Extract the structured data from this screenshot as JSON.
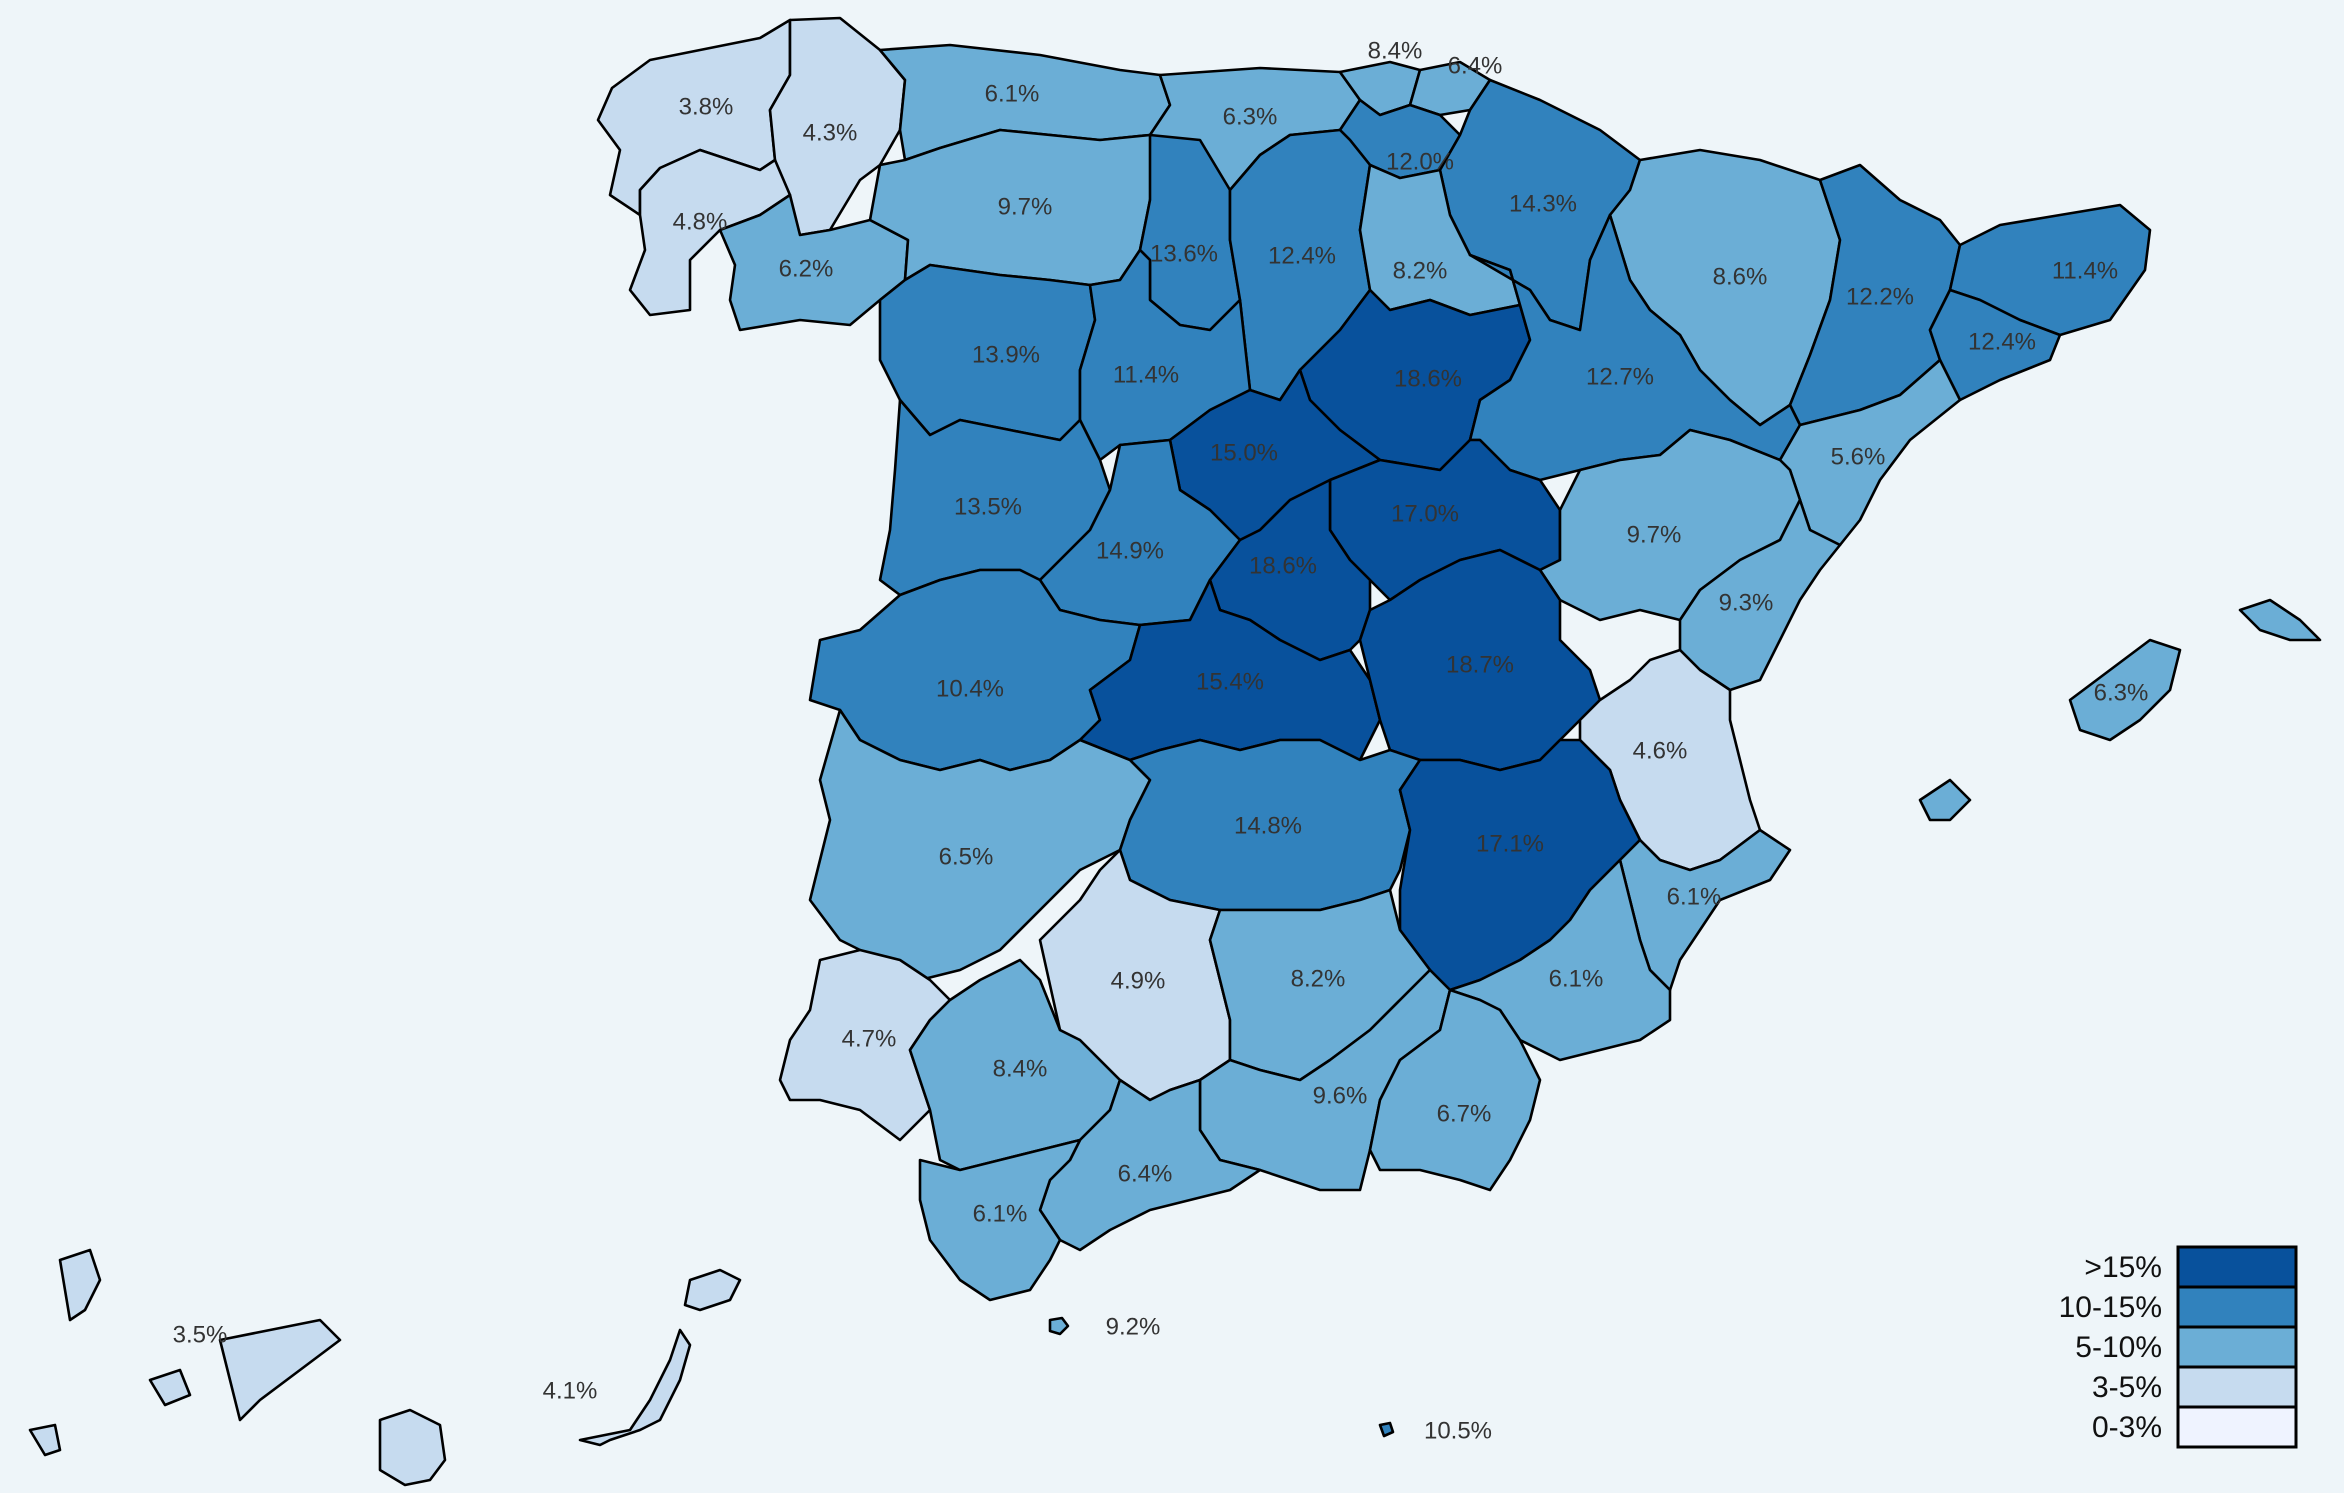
{
  "legend": {
    "items": [
      {
        "label": ">15%",
        "color": "#08519c"
      },
      {
        "label": "10-15%",
        "color": "#3182bd"
      },
      {
        "label": "5-10%",
        "color": "#6baed6"
      },
      {
        "label": "3-5%",
        "color": "#c6dbef"
      },
      {
        "label": "0-3%",
        "color": "#eff3ff"
      }
    ]
  },
  "provinces": [
    {
      "id": "a-coruna",
      "value": "3.8%",
      "bin": 3
    },
    {
      "id": "lugo",
      "value": "4.3%",
      "bin": 3
    },
    {
      "id": "pontevedra",
      "value": "4.8%",
      "bin": 3
    },
    {
      "id": "ourense",
      "value": "6.2%",
      "bin": 2
    },
    {
      "id": "asturias",
      "value": "6.1%",
      "bin": 2
    },
    {
      "id": "cantabria",
      "value": "6.3%",
      "bin": 2
    },
    {
      "id": "bizkaia",
      "value": "8.4%",
      "bin": 2
    },
    {
      "id": "gipuzkoa",
      "value": "6.4%",
      "bin": 2
    },
    {
      "id": "araba",
      "value": "12.0%",
      "bin": 1
    },
    {
      "id": "navarra",
      "value": "14.3%",
      "bin": 1
    },
    {
      "id": "leon",
      "value": "9.7%",
      "bin": 2
    },
    {
      "id": "palencia",
      "value": "13.6%",
      "bin": 1
    },
    {
      "id": "burgos",
      "value": "12.4%",
      "bin": 1
    },
    {
      "id": "la-rioja",
      "value": "8.2%",
      "bin": 2
    },
    {
      "id": "huesca",
      "value": "8.6%",
      "bin": 2
    },
    {
      "id": "lleida",
      "value": "12.2%",
      "bin": 1
    },
    {
      "id": "girona",
      "value": "11.4%",
      "bin": 1
    },
    {
      "id": "barcelona",
      "value": "12.4%",
      "bin": 1
    },
    {
      "id": "zamora",
      "value": "13.9%",
      "bin": 1
    },
    {
      "id": "valladolid",
      "value": "11.4%",
      "bin": 1
    },
    {
      "id": "soria",
      "value": "18.6%",
      "bin": 0
    },
    {
      "id": "zaragoza",
      "value": "12.7%",
      "bin": 1
    },
    {
      "id": "tarragona",
      "value": "5.6%",
      "bin": 2
    },
    {
      "id": "segovia",
      "value": "15.0%",
      "bin": 0
    },
    {
      "id": "guadalajara",
      "value": "17.0%",
      "bin": 0
    },
    {
      "id": "salamanca",
      "value": "13.5%",
      "bin": 1
    },
    {
      "id": "avila",
      "value": "14.9%",
      "bin": 1
    },
    {
      "id": "madrid",
      "value": "18.6%",
      "bin": 0
    },
    {
      "id": "teruel",
      "value": "9.7%",
      "bin": 2
    },
    {
      "id": "castellon",
      "value": "9.3%",
      "bin": 2
    },
    {
      "id": "caceres",
      "value": "10.4%",
      "bin": 1
    },
    {
      "id": "toledo",
      "value": "15.4%",
      "bin": 0
    },
    {
      "id": "cuenca",
      "value": "18.7%",
      "bin": 0
    },
    {
      "id": "valencia",
      "value": "4.6%",
      "bin": 3
    },
    {
      "id": "badajoz",
      "value": "6.5%",
      "bin": 2
    },
    {
      "id": "ciudad-real",
      "value": "14.8%",
      "bin": 1
    },
    {
      "id": "albacete",
      "value": "17.1%",
      "bin": 0
    },
    {
      "id": "alicante",
      "value": "6.1%",
      "bin": 2
    },
    {
      "id": "huelva",
      "value": "4.7%",
      "bin": 3
    },
    {
      "id": "sevilla",
      "value": "8.4%",
      "bin": 2
    },
    {
      "id": "cordoba",
      "value": "4.9%",
      "bin": 3
    },
    {
      "id": "jaen",
      "value": "8.2%",
      "bin": 2
    },
    {
      "id": "murcia",
      "value": "6.1%",
      "bin": 2
    },
    {
      "id": "granada",
      "value": "9.6%",
      "bin": 2
    },
    {
      "id": "almeria",
      "value": "6.7%",
      "bin": 2
    },
    {
      "id": "malaga",
      "value": "6.4%",
      "bin": 2
    },
    {
      "id": "cadiz",
      "value": "6.1%",
      "bin": 2
    },
    {
      "id": "baleares",
      "value": "6.3%",
      "bin": 2
    },
    {
      "id": "santa-cruz-tenerife",
      "value": "3.5%",
      "bin": 3
    },
    {
      "id": "las-palmas",
      "value": "4.1%",
      "bin": 3
    },
    {
      "id": "ceuta",
      "value": "9.2%",
      "bin": 2
    },
    {
      "id": "melilla",
      "value": "10.5%",
      "bin": 1
    }
  ]
}
